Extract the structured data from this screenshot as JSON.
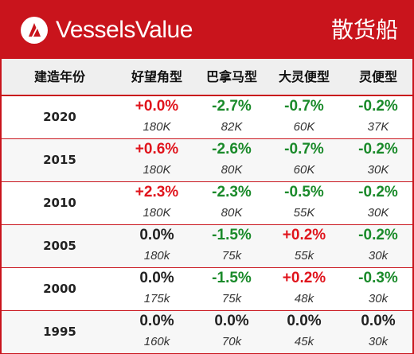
{
  "brand": {
    "name": "VesselsValue",
    "section_title": "散货船"
  },
  "colors": {
    "brand_red": "#c9141c",
    "up": "#e0141c",
    "down": "#1a8a2a",
    "flat": "#222222"
  },
  "table": {
    "headers": [
      "建造年份",
      "好望角型",
      "巴拿马型",
      "大灵便型",
      "灵便型"
    ],
    "rows": [
      {
        "year": "2020",
        "cells": [
          {
            "change": "+0.0%",
            "dir": "pos",
            "size": "180K"
          },
          {
            "change": "-2.7%",
            "dir": "neg",
            "size": "82K"
          },
          {
            "change": "-0.7%",
            "dir": "neg",
            "size": "60K"
          },
          {
            "change": "-0.2%",
            "dir": "neg",
            "size": "37K"
          }
        ]
      },
      {
        "year": "2015",
        "cells": [
          {
            "change": "+0.6%",
            "dir": "pos",
            "size": "180K"
          },
          {
            "change": "-2.6%",
            "dir": "neg",
            "size": "80K"
          },
          {
            "change": "-0.7%",
            "dir": "neg",
            "size": "60K"
          },
          {
            "change": "-0.2%",
            "dir": "neg",
            "size": "30K"
          }
        ]
      },
      {
        "year": "2010",
        "cells": [
          {
            "change": "+2.3%",
            "dir": "pos",
            "size": "180K"
          },
          {
            "change": "-2.3%",
            "dir": "neg",
            "size": "80K"
          },
          {
            "change": "-0.5%",
            "dir": "neg",
            "size": "55K"
          },
          {
            "change": "-0.2%",
            "dir": "neg",
            "size": "30K"
          }
        ]
      },
      {
        "year": "2005",
        "cells": [
          {
            "change": "0.0%",
            "dir": "zero",
            "size": "180k"
          },
          {
            "change": "-1.5%",
            "dir": "neg",
            "size": "75k"
          },
          {
            "change": "+0.2%",
            "dir": "pos",
            "size": "55k"
          },
          {
            "change": "-0.2%",
            "dir": "neg",
            "size": "30k"
          }
        ]
      },
      {
        "year": "2000",
        "cells": [
          {
            "change": "0.0%",
            "dir": "zero",
            "size": "175k"
          },
          {
            "change": "-1.5%",
            "dir": "neg",
            "size": "75k"
          },
          {
            "change": "+0.2%",
            "dir": "pos",
            "size": "48k"
          },
          {
            "change": "-0.3%",
            "dir": "neg",
            "size": "30k"
          }
        ]
      },
      {
        "year": "1995",
        "cells": [
          {
            "change": "0.0%",
            "dir": "zero",
            "size": "160k"
          },
          {
            "change": "0.0%",
            "dir": "zero",
            "size": "70k"
          },
          {
            "change": "0.0%",
            "dir": "zero",
            "size": "45k"
          },
          {
            "change": "0.0%",
            "dir": "zero",
            "size": "30k"
          }
        ]
      }
    ]
  }
}
